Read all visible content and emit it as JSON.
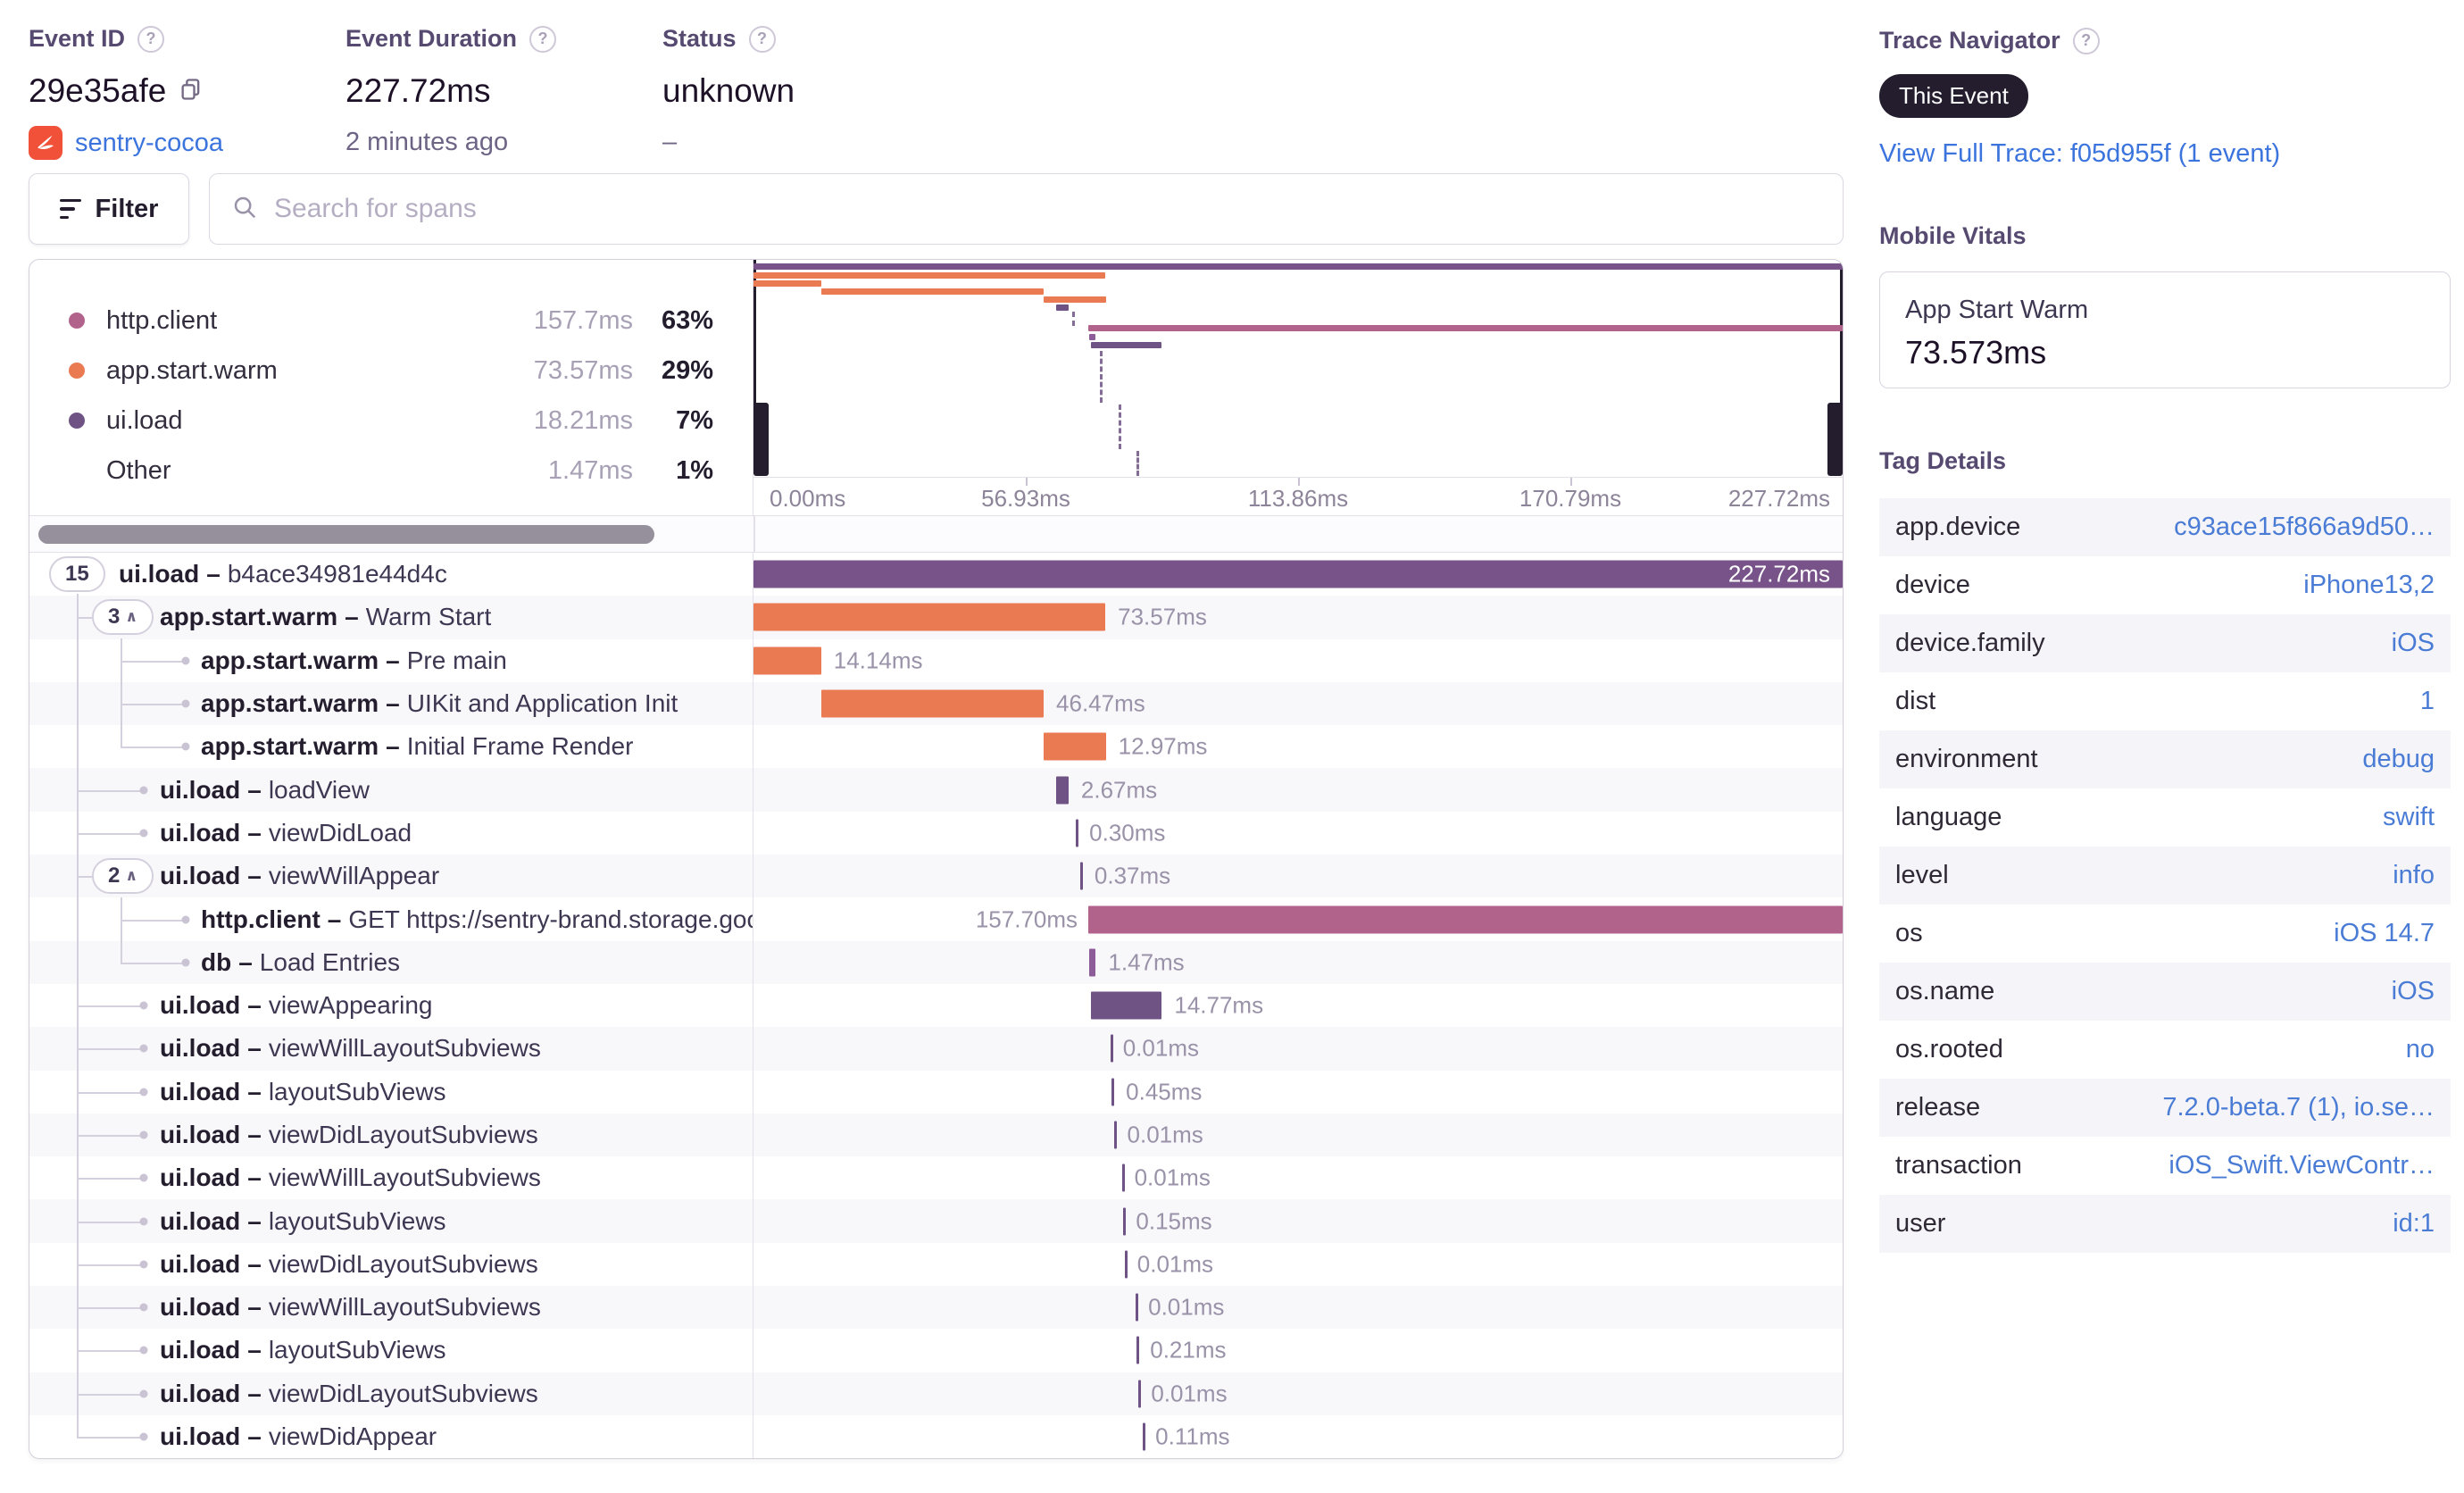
{
  "header": {
    "event_id": {
      "label": "Event ID",
      "value": "29e35afe",
      "project": "sentry-cocoa"
    },
    "duration": {
      "label": "Event Duration",
      "value": "227.72ms",
      "subtext": "2 minutes ago"
    },
    "status": {
      "label": "Status",
      "value": "unknown",
      "subtext": "–"
    }
  },
  "toolbar": {
    "filter_label": "Filter",
    "search_placeholder": "Search for spans"
  },
  "icons": {
    "question": "?",
    "chevron_up": "∧"
  },
  "colors": {
    "root": "#785389",
    "orange": "#ea7a52",
    "http": "#b2638c",
    "ui": "#6e5384",
    "db": "#8d5d99"
  },
  "legend": {
    "items": [
      {
        "name": "http.client",
        "duration": "157.7ms",
        "pct": "63%",
        "color": "#b2638c"
      },
      {
        "name": "app.start.warm",
        "duration": "73.57ms",
        "pct": "29%",
        "color": "#ea7a52"
      },
      {
        "name": "ui.load",
        "duration": "18.21ms",
        "pct": "7%",
        "color": "#6e5384"
      },
      {
        "name": "Other",
        "duration": "1.47ms",
        "pct": "1%",
        "color": null
      }
    ]
  },
  "minimap": {
    "axis_ticks": [
      "0.00ms",
      "56.93ms",
      "113.86ms",
      "170.79ms",
      "227.72ms"
    ]
  },
  "trace_navigator": {
    "title": "Trace Navigator",
    "badge": "This Event",
    "link": "View Full Trace: f05d955f (1 event)"
  },
  "mobile_vitals": {
    "title": "Mobile Vitals",
    "metric": "App Start Warm",
    "value": "73.573ms"
  },
  "tag_details": {
    "title": "Tag Details",
    "rows": [
      {
        "key": "app.device",
        "value": "c93ace15f866a9d50…"
      },
      {
        "key": "device",
        "value": "iPhone13,2"
      },
      {
        "key": "device.family",
        "value": "iOS"
      },
      {
        "key": "dist",
        "value": "1"
      },
      {
        "key": "environment",
        "value": "debug"
      },
      {
        "key": "language",
        "value": "swift"
      },
      {
        "key": "level",
        "value": "info"
      },
      {
        "key": "os",
        "value": "iOS 14.7"
      },
      {
        "key": "os.name",
        "value": "iOS"
      },
      {
        "key": "os.rooted",
        "value": "no"
      },
      {
        "key": "release",
        "value": "7.2.0-beta.7 (1), io.se…"
      },
      {
        "key": "transaction",
        "value": "iOS_Swift.ViewContr…"
      },
      {
        "key": "user",
        "value": "id:1"
      }
    ]
  },
  "spans": {
    "total_ms": 227.72,
    "separator": "–",
    "rows": [
      {
        "op": "ui.load",
        "desc": "b4ace34981e44d4c",
        "count": "15",
        "chev": false,
        "depth": 0,
        "start": 0,
        "dur": 227.72,
        "label": "227.72ms",
        "color": "root",
        "side": "in",
        "mini": true
      },
      {
        "op": "app.start.warm",
        "desc": "Warm Start",
        "count": "3",
        "chev": true,
        "depth": 1,
        "start": 0,
        "dur": 73.57,
        "label": "73.57ms",
        "color": "orange",
        "side": "r",
        "mini": true
      },
      {
        "op": "app.start.warm",
        "desc": "Pre main",
        "depth": 2,
        "start": 0,
        "dur": 14.14,
        "label": "14.14ms",
        "color": "orange",
        "side": "r",
        "mini": true
      },
      {
        "op": "app.start.warm",
        "desc": "UIKit and Application Init",
        "depth": 2,
        "start": 14.2,
        "dur": 46.47,
        "label": "46.47ms",
        "color": "orange",
        "side": "r",
        "mini": true
      },
      {
        "op": "app.start.warm",
        "desc": "Initial Frame Render",
        "depth": 2,
        "start": 60.7,
        "dur": 12.97,
        "label": "12.97ms",
        "color": "orange",
        "side": "r",
        "mini": true
      },
      {
        "op": "ui.load",
        "desc": "loadView",
        "depth": 1,
        "start": 63.2,
        "dur": 2.67,
        "label": "2.67ms",
        "color": "ui",
        "side": "r",
        "mini": true
      },
      {
        "op": "ui.load",
        "desc": "viewDidLoad",
        "depth": 1,
        "start": 67.3,
        "dur": 0.3,
        "label": "0.30ms",
        "color": "ui",
        "side": "r",
        "mini": false
      },
      {
        "op": "ui.load",
        "desc": "viewWillAppear",
        "count": "2",
        "chev": true,
        "depth": 1,
        "start": 68.3,
        "dur": 0.37,
        "label": "0.37ms",
        "color": "ui",
        "side": "r",
        "mini": false
      },
      {
        "op": "http.client",
        "desc": "GET https://sentry-brand.storage.googlea",
        "depth": 2,
        "start": 70.0,
        "dur": 157.7,
        "label": "157.70ms",
        "color": "http",
        "side": "l",
        "mini": true
      },
      {
        "op": "db",
        "desc": "Load Entries",
        "depth": 2,
        "start": 70.1,
        "dur": 1.47,
        "label": "1.47ms",
        "color": "db",
        "side": "r",
        "mini": true
      },
      {
        "op": "ui.load",
        "desc": "viewAppearing",
        "depth": 1,
        "start": 70.6,
        "dur": 14.77,
        "label": "14.77ms",
        "color": "ui",
        "side": "r",
        "mini": true
      },
      {
        "op": "ui.load",
        "desc": "viewWillLayoutSubviews",
        "depth": 1,
        "start": 74.6,
        "dur": 0.01,
        "label": "0.01ms",
        "color": "ui",
        "side": "r",
        "mini": false
      },
      {
        "op": "ui.load",
        "desc": "layoutSubViews",
        "depth": 1,
        "start": 74.8,
        "dur": 0.45,
        "label": "0.45ms",
        "color": "ui",
        "side": "r",
        "mini": false
      },
      {
        "op": "ui.load",
        "desc": "viewDidLayoutSubviews",
        "depth": 1,
        "start": 75.5,
        "dur": 0.01,
        "label": "0.01ms",
        "color": "ui",
        "side": "r",
        "mini": false
      },
      {
        "op": "ui.load",
        "desc": "viewWillLayoutSubviews",
        "depth": 1,
        "start": 77.0,
        "dur": 0.01,
        "label": "0.01ms",
        "color": "ui",
        "side": "r",
        "mini": false
      },
      {
        "op": "ui.load",
        "desc": "layoutSubViews",
        "depth": 1,
        "start": 77.2,
        "dur": 0.15,
        "label": "0.15ms",
        "color": "ui",
        "side": "r",
        "mini": false
      },
      {
        "op": "ui.load",
        "desc": "viewDidLayoutSubviews",
        "depth": 1,
        "start": 77.6,
        "dur": 0.01,
        "label": "0.01ms",
        "color": "ui",
        "side": "r",
        "mini": false
      },
      {
        "op": "ui.load",
        "desc": "viewWillLayoutSubviews",
        "depth": 1,
        "start": 79.9,
        "dur": 0.01,
        "label": "0.01ms",
        "color": "ui",
        "side": "r",
        "mini": false
      },
      {
        "op": "ui.load",
        "desc": "layoutSubViews",
        "depth": 1,
        "start": 80.1,
        "dur": 0.21,
        "label": "0.21ms",
        "color": "ui",
        "side": "r",
        "mini": false
      },
      {
        "op": "ui.load",
        "desc": "viewDidLayoutSubviews",
        "depth": 1,
        "start": 80.5,
        "dur": 0.01,
        "label": "0.01ms",
        "color": "ui",
        "side": "r",
        "mini": false
      },
      {
        "op": "ui.load",
        "desc": "viewDidAppear",
        "depth": 1,
        "start": 81.3,
        "dur": 0.11,
        "label": "0.11ms",
        "color": "ui",
        "side": "r",
        "mini": false
      }
    ]
  }
}
